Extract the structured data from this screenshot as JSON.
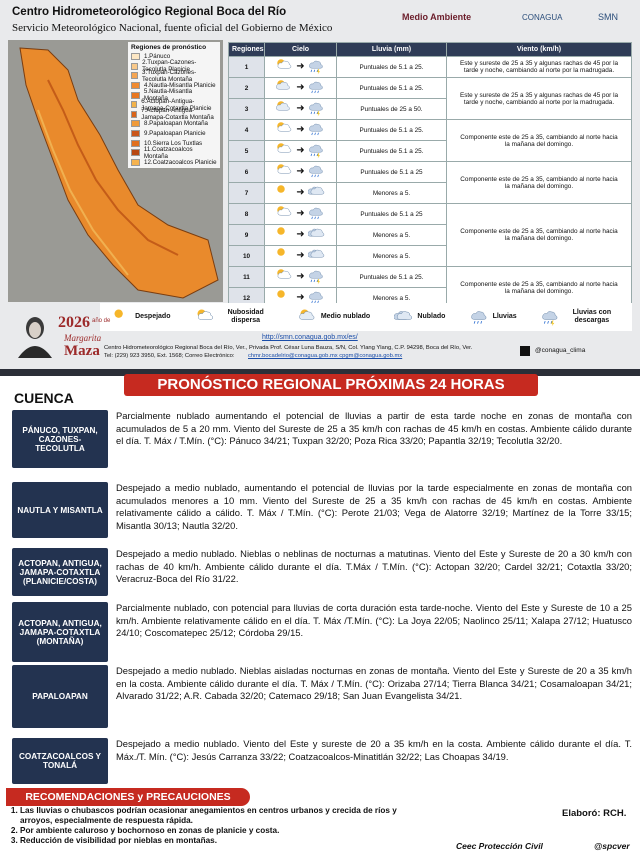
{
  "header": {
    "title": "Centro Hidrometeorológico Regional Boca del Río",
    "subtitle": "Servicio Meteorológico Nacional, fuente oficial del Gobierno de México",
    "logos": [
      "Medio Ambiente",
      "CONAGUA",
      "SMN"
    ]
  },
  "map": {
    "legend_title": "Regiones de pronóstico",
    "legend": [
      "1.Pánuco",
      "2.Tuxpan-Cazones-Tecolutla Planicie",
      "3.Tuxpan-Cazones-Tecolutla Montaña",
      "4.Nautla-Misantla Planicie",
      "5.Nautla-Misantla Montaña",
      "6.Actopan-Antigua-Jamapa-Cotaxtla Planicie",
      "7.Actopan-Antigua-Jamapa-Cotaxtla Montaña",
      "8.Papaloapan Montaña",
      "9.Papaloapan Planicie",
      "10.Sierra Los Tuxtlas",
      "11.Coatzacoalcos Montaña",
      "12.Coatzacoalcos Planicie"
    ]
  },
  "table": {
    "headers": [
      "Regiones",
      "Cielo",
      "Lluvia (mm)",
      "Viento (km/h)"
    ],
    "rows": [
      [
        "1",
        "Puntuales de 5.1 a 25."
      ],
      [
        "2",
        "Puntuales de 5.1 a 25."
      ],
      [
        "3",
        "Puntuales de 25 a 50."
      ],
      [
        "4",
        "Puntuales de 5.1 a 25."
      ],
      [
        "5",
        "Puntuales de 5.1 a 25."
      ],
      [
        "6",
        "Puntuales de 5.1 a 25"
      ],
      [
        "7",
        "Menores a 5."
      ],
      [
        "8",
        "Puntuales de 5.1 a 25"
      ],
      [
        "9",
        "Menores a 5."
      ],
      [
        "10",
        "Menores a 5."
      ],
      [
        "11",
        "Puntuales de 5.1 a 25."
      ],
      [
        "12",
        "Menores a 5."
      ]
    ],
    "wind": [
      "Este y sureste de 25 a 35 y algunas rachas de 45 por la tarde y noche, cambiando al norte por la madrugada.",
      "Este y sureste de 25 a 35 y algunas rachas de 45 por la tarde y noche, cambiando al norte por la madrugada.",
      "Componente este de 25 a 35, cambiando al norte hacia la mañana del domingo.",
      "Componente este de 25 a 35, cambiando al norte hacia la mañana del domingo.",
      "Componente este de 25 a 35, cambiando al norte hacia la mañana del domingo.",
      "Componente este de 25 a 35, cambiando al norte hacia la mañana del domingo."
    ]
  },
  "icon_legend": [
    "Despejado",
    "Nubosidad dispersa",
    "Medio nublado",
    "Nublado",
    "Lluvias",
    "Lluvias con descargas"
  ],
  "footer": {
    "year": "2026",
    "year_text": "año de",
    "name1": "Margarita",
    "name2": "Maza",
    "url": "http://smn.conagua.gob.mx/es/",
    "address": "Centro Hidrometeorológico Regional Boca del Río, Ver., Privada Prof. César Luna Bauza, S/N, Col. Ylang Ylang, C.P. 94298, Boca del Río, Ver.",
    "phone": "Tel: (229) 923 3950, Ext. 1568; Correo Electrónico:",
    "emails": "chmr.bocadelrio@conagua.gob.mx cpgm@conagua.gob.mx",
    "social": "@conagua_clima"
  },
  "forecast": {
    "title": "PRONÓSTICO REGIONAL PRÓXIMAS 24 HORAS",
    "column": "CUENCA",
    "rows": [
      {
        "label": "PÁNUCO, TUXPAN, CAZONES-TECOLUTLA",
        "text": "Parcialmente nublado aumentando el potencial de lluvias a partir de esta tarde noche en zonas de montaña con acumulados de 5 a 20 mm. Viento del Sureste de 25 a 35 km/h con rachas de 45 km/h en costas. Ambiente cálido durante el día. T. Máx / T.Mín. (°C): Pánuco 34/21; Tuxpan 32/20; Poza Rica 33/20; Papantla 32/19; Tecolutla 32/20."
      },
      {
        "label": "NAUTLA Y MISANTLA",
        "text": "Despejado a medio nublado, aumentando el potencial de lluvias por la tarde especialmente en zonas de montaña con acumulados menores a 10 mm. Viento del Sureste de 25 a 35 km/h con rachas de 45 km/h en costas. Ambiente relativamente cálido a cálido. T. Máx / T.Mín. (°C): Perote 21/03; Vega de Alatorre 32/19; Martínez de la Torre 33/15; Misantla 30/13; Nautla 32/20."
      },
      {
        "label": "ACTOPAN, ANTIGUA, JAMAPA-COTAXTLA (PLANICIE/COSTA)",
        "text": "Despejado a medio nublado. Nieblas o neblinas de nocturnas a matutinas. Viento del Este y Sureste de 20 a 30 km/h con rachas de 40 km/h. Ambiente cálido durante el día. T.Máx / T.Mín. (°C): Actopan 32/20; Cardel 32/21; Cotaxtla 33/20; Veracruz-Boca del Río 31/22."
      },
      {
        "label": "ACTOPAN, ANTIGUA, JAMAPA-COTAXTLA (MONTAÑA)",
        "text": "Parcialmente nublado, con potencial para lluvias de corta duración esta tarde-noche. Viento del Este y Sureste de 10 a 25 km/h. Ambiente relativamente cálido en el día. T. Máx /T.Mín. (°C): La Joya 22/05; Naolinco 25/11; Xalapa 27/12; Huatusco 24/10; Coscomatepec 25/12; Córdoba 29/15."
      },
      {
        "label": "PAPALOAPAN",
        "text": "Despejado a medio nublado. Nieblas aisladas nocturnas en zonas de montaña. Viento del Este y Sureste de 20 a 35 km/h en la costa. Ambiente cálido durante el día. T. Máx / T.Mín. (°C): Orizaba 27/14; Tierra Blanca 34/21; Cosamaloapan 34/21; Alvarado 31/22; A.R. Cabada 32/20; Catemaco 29/18; San Juan Evangelista 34/21."
      },
      {
        "label": "COATZACOALCOS Y TONALÁ",
        "text": "Despejado a medio nublado. Viento del Este y sureste de 20 a 35 km/h en la costa. Ambiente cálido durante el día. T. Máx./T. Mín. (°C): Jesús Carranza 33/22; Coatzacoalcos-Minatitlán 32/22; Las Choapas 34/19."
      }
    ]
  },
  "recommendations": {
    "title": "RECOMENDACIONES y PRECAUCIONES",
    "items": [
      "Las lluvias o chubascos podrían ocasionar anegamientos en centros urbanos y crecida de ríos y arroyos, especialmente de respuesta rápida.",
      "Por ambiente caluroso y bochornoso en zonas de planicie y costa.",
      "Reducción de visibilidad por nieblas en montañas."
    ],
    "author": "Elaboró: RCH.",
    "credit1": "Ceec Protección Civil",
    "credit2": "@spcver"
  }
}
